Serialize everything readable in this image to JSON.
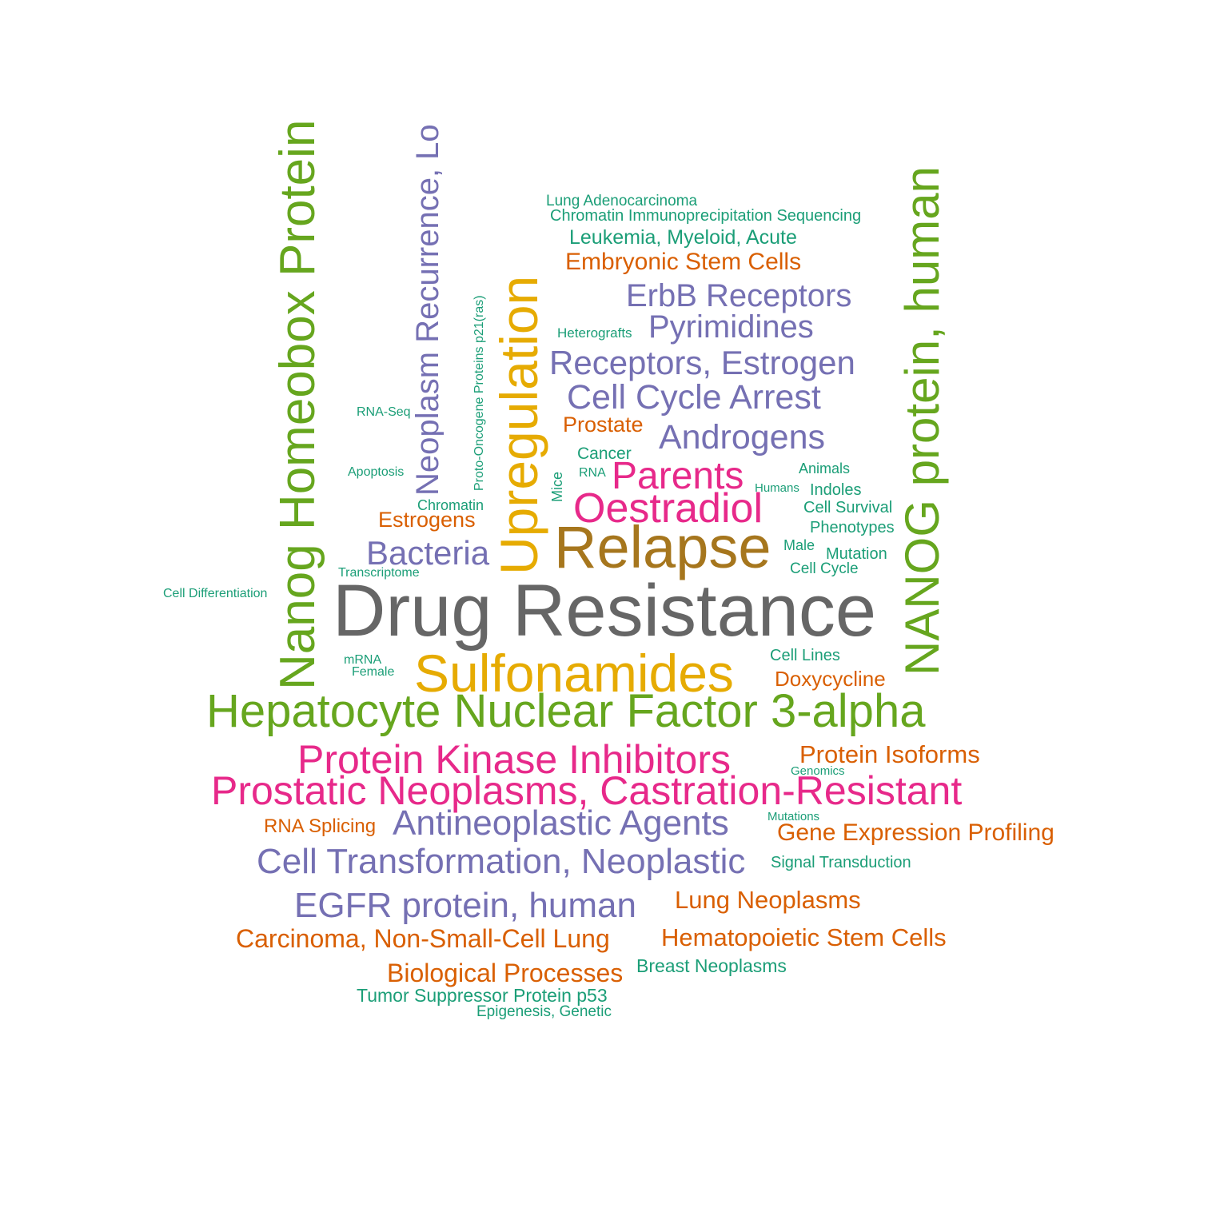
{
  "colors": {
    "gray": "#666666",
    "olive": "#a6761d",
    "gold": "#e6ab02",
    "green": "#66a61e",
    "magenta": "#e7298a",
    "purple": "#7570b3",
    "orange": "#d95f02",
    "teal": "#1b9e77"
  },
  "words": [
    {
      "text": "Drug Resistance",
      "color": "#666666"
    },
    {
      "text": "Relapse",
      "color": "#a6761d"
    },
    {
      "text": "Sulfonamides",
      "color": "#e6ab02"
    },
    {
      "text": "Upregulation",
      "color": "#e6ab02"
    },
    {
      "text": "Hepatocyte Nuclear Factor 3-alpha",
      "color": "#66a61e"
    },
    {
      "text": "Nanog Homeobox Protein",
      "color": "#66a61e"
    },
    {
      "text": "NANOG protein, human",
      "color": "#66a61e"
    },
    {
      "text": "Protein Kinase Inhibitors",
      "color": "#e7298a"
    },
    {
      "text": "Prostatic Neoplasms, Castration-Resistant",
      "color": "#e7298a"
    },
    {
      "text": "Oestradiol",
      "color": "#e7298a"
    },
    {
      "text": "Parents",
      "color": "#e7298a"
    },
    {
      "text": "Neoplasm Recurrence, Local",
      "color": "#7570b3"
    },
    {
      "text": "ErbB Receptors",
      "color": "#7570b3"
    },
    {
      "text": "Pyrimidines",
      "color": "#7570b3"
    },
    {
      "text": "Receptors, Estrogen",
      "color": "#7570b3"
    },
    {
      "text": "Cell Cycle Arrest",
      "color": "#7570b3"
    },
    {
      "text": "Androgens",
      "color": "#7570b3"
    },
    {
      "text": "Bacteria",
      "color": "#7570b3"
    },
    {
      "text": "Antineoplastic Agents",
      "color": "#7570b3"
    },
    {
      "text": "Cell Transformation, Neoplastic",
      "color": "#7570b3"
    },
    {
      "text": "EGFR protein, human",
      "color": "#7570b3"
    },
    {
      "text": "Embryonic Stem Cells",
      "color": "#d95f02"
    },
    {
      "text": "Prostate",
      "color": "#d95f02"
    },
    {
      "text": "Estrogens",
      "color": "#d95f02"
    },
    {
      "text": "Doxycycline",
      "color": "#d95f02"
    },
    {
      "text": "Protein Isoforms",
      "color": "#d95f02"
    },
    {
      "text": "RNA Splicing",
      "color": "#d95f02"
    },
    {
      "text": "Gene Expression Profiling",
      "color": "#d95f02"
    },
    {
      "text": "Lung Neoplasms",
      "color": "#d95f02"
    },
    {
      "text": "Carcinoma, Non-Small-Cell Lung",
      "color": "#d95f02"
    },
    {
      "text": "Hematopoietic Stem Cells",
      "color": "#d95f02"
    },
    {
      "text": "Biological Processes",
      "color": "#d95f02"
    },
    {
      "text": "Lung Adenocarcinoma",
      "color": "#1b9e77"
    },
    {
      "text": "Chromatin Immunoprecipitation Sequencing",
      "color": "#1b9e77"
    },
    {
      "text": "Leukemia, Myeloid, Acute",
      "color": "#1b9e77"
    },
    {
      "text": "Heterografts",
      "color": "#1b9e77"
    },
    {
      "text": "Proto-Oncogene Proteins p21(ras)",
      "color": "#1b9e77"
    },
    {
      "text": "RNA-Seq",
      "color": "#1b9e77"
    },
    {
      "text": "Cancer",
      "color": "#1b9e77"
    },
    {
      "text": "RNA",
      "color": "#1b9e77"
    },
    {
      "text": "Mice",
      "color": "#1b9e77"
    },
    {
      "text": "Apoptosis",
      "color": "#1b9e77"
    },
    {
      "text": "Chromatin",
      "color": "#1b9e77"
    },
    {
      "text": "Animals",
      "color": "#1b9e77"
    },
    {
      "text": "Humans",
      "color": "#1b9e77"
    },
    {
      "text": "Indoles",
      "color": "#1b9e77"
    },
    {
      "text": "Cell Survival",
      "color": "#1b9e77"
    },
    {
      "text": "Phenotypes",
      "color": "#1b9e77"
    },
    {
      "text": "Male",
      "color": "#1b9e77"
    },
    {
      "text": "Mutation",
      "color": "#1b9e77"
    },
    {
      "text": "Cell Cycle",
      "color": "#1b9e77"
    },
    {
      "text": "Transcriptome",
      "color": "#1b9e77"
    },
    {
      "text": "Cell Differentiation",
      "color": "#1b9e77"
    },
    {
      "text": "mRNA",
      "color": "#1b9e77"
    },
    {
      "text": "Female",
      "color": "#1b9e77"
    },
    {
      "text": "Cell Lines",
      "color": "#1b9e77"
    },
    {
      "text": "Genomics",
      "color": "#1b9e77"
    },
    {
      "text": "Mutations",
      "color": "#1b9e77"
    },
    {
      "text": "Signal Transduction",
      "color": "#1b9e77"
    },
    {
      "text": "Breast Neoplasms",
      "color": "#1b9e77"
    },
    {
      "text": "Tumor Suppressor Protein p53",
      "color": "#1b9e77"
    },
    {
      "text": "Epigenesis, Genetic",
      "color": "#1b9e77"
    }
  ]
}
